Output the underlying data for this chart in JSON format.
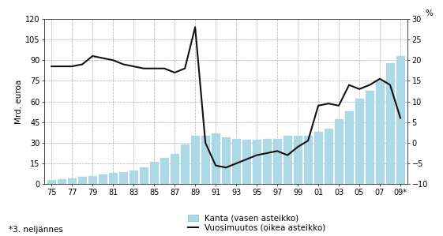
{
  "bar_years": [
    1975,
    1976,
    1977,
    1978,
    1979,
    1980,
    1981,
    1982,
    1983,
    1984,
    1985,
    1986,
    1987,
    1988,
    1989,
    1990,
    1991,
    1992,
    1993,
    1994,
    1995,
    1996,
    1997,
    1998,
    1999,
    2000,
    2001,
    2002,
    2003,
    2004,
    2005,
    2006,
    2007,
    2008,
    2009
  ],
  "bar_data": [
    3,
    3.5,
    4,
    5,
    6,
    7,
    8,
    9,
    10,
    12,
    16,
    19,
    22,
    29,
    35,
    35,
    37,
    34,
    33,
    32,
    32,
    33,
    33,
    35,
    35,
    35,
    38,
    40,
    47,
    53,
    62,
    68,
    75,
    88,
    93
  ],
  "line_years": [
    1975,
    1976,
    1977,
    1978,
    1979,
    1980,
    1981,
    1982,
    1983,
    1984,
    1985,
    1986,
    1987,
    1988,
    1989,
    1990,
    1991,
    1992,
    1993,
    1994,
    1995,
    1996,
    1997,
    1998,
    1999,
    2000,
    2001,
    2002,
    2003,
    2004,
    2005,
    2006,
    2007,
    2008,
    2009
  ],
  "line_data": [
    18.5,
    18.5,
    18.5,
    19.0,
    21.0,
    20.5,
    20.0,
    19.0,
    18.5,
    18.0,
    18.0,
    18.0,
    17.0,
    18.0,
    28.0,
    0.0,
    -5.5,
    -6.0,
    -5.0,
    -4.0,
    -3.0,
    -2.5,
    -2.0,
    -3.0,
    -1.0,
    0.5,
    9.0,
    9.5,
    9.0,
    14.0,
    13.0,
    14.0,
    15.5,
    14.0,
    6.0
  ],
  "bar_color": "#add8e6",
  "line_color": "#111111",
  "ylabel_left": "Mrd. euroa",
  "ylabel_right": "%",
  "ylim_left": [
    0,
    120
  ],
  "ylim_right": [
    -10,
    30
  ],
  "yticks_left": [
    0,
    15,
    30,
    45,
    60,
    75,
    90,
    105,
    120
  ],
  "yticks_right": [
    -10,
    -5,
    0,
    5,
    10,
    15,
    20,
    25,
    30
  ],
  "xtick_positions": [
    1975,
    1977,
    1979,
    1981,
    1983,
    1985,
    1987,
    1989,
    1991,
    1993,
    1995,
    1997,
    1999,
    2001,
    2003,
    2005,
    2007,
    2009
  ],
  "xtick_labels": [
    "75",
    "77",
    "79",
    "81",
    "83",
    "85",
    "87",
    "89",
    "91",
    "93",
    "95",
    "97",
    "99",
    "01",
    "03",
    "05",
    "07",
    "09*"
  ],
  "xlim": [
    1974.3,
    2009.7
  ],
  "legend_bar": "Kanta (vasen asteikko)",
  "legend_line": "Vuosimuutos (oikea asteikko)",
  "footnote": "*3. neljännes",
  "background_color": "#ffffff",
  "grid_color": "#b0b0b0",
  "tick_label_fontsize": 7.0,
  "axis_label_fontsize": 7.5
}
